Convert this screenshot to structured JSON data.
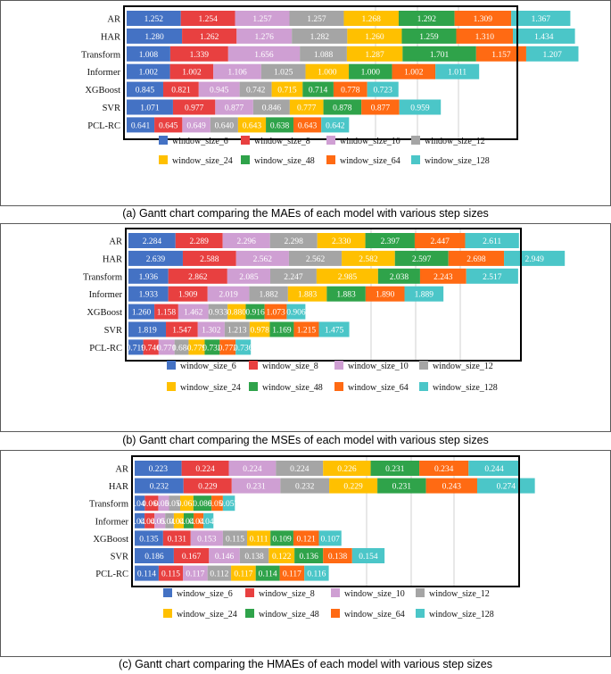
{
  "colors": [
    "#4472c4",
    "#e84040",
    "#cf9fd3",
    "#a5a5a5",
    "#ffc000",
    "#2fa34a",
    "#ff6a13",
    "#4bc6c8"
  ],
  "legend": [
    "window_size_6",
    "window_size_8",
    "window_size_10",
    "window_size_12",
    "window_size_24",
    "window_size_48",
    "window_size_64",
    "window_size_128"
  ],
  "captions": [
    "(a) Gantt chart comparing the MAEs of each model with various step sizes",
    "(b) Gantt chart comparing the MSEs of each model with various step sizes",
    "(c) Gantt chart comparing the HMAEs of each model with various step sizes"
  ],
  "chart_data": [
    {
      "type": "bar",
      "orientation": "horizontal-stacked",
      "title": "(a) Gantt chart comparing the MAEs of each model with various step sizes",
      "metric": "MAE",
      "categories": [
        "AR",
        "HAR",
        "Transform",
        "Informer",
        "XGBoost",
        "SVR",
        "PCL-RC"
      ],
      "series": [
        {
          "name": "window_size_6",
          "values": [
            "1.252",
            "1.280",
            "1.008",
            "1.002",
            "0.845",
            "1.071",
            "0.641"
          ]
        },
        {
          "name": "window_size_8",
          "values": [
            "1.254",
            "1.262",
            "1.339",
            "1.002",
            "0.821",
            "0.977",
            "0.645"
          ]
        },
        {
          "name": "window_size_10",
          "values": [
            "1.257",
            "1.276",
            "1.656",
            "1.106",
            "0.945",
            "0.877",
            "0.649"
          ]
        },
        {
          "name": "window_size_12",
          "values": [
            "1.257",
            "1.282",
            "1.088",
            "1.025",
            "0.742",
            "0.846",
            "0.640"
          ]
        },
        {
          "name": "window_size_24",
          "values": [
            "1.268",
            "1.260",
            "1.287",
            "1.000",
            "0.715",
            "0.777",
            "0.643"
          ]
        },
        {
          "name": "window_size_48",
          "values": [
            "1.292",
            "1.259",
            "1.701",
            "1.000",
            "0.714",
            "0.878",
            "0.638"
          ]
        },
        {
          "name": "window_size_64",
          "values": [
            "1.309",
            "1.310",
            "1.157",
            "1.002",
            "0.778",
            "0.877",
            "0.643"
          ]
        },
        {
          "name": "window_size_128",
          "values": [
            "1.367",
            "1.434",
            "1.207",
            "1.011",
            "0.723",
            "0.959",
            "0.642"
          ]
        }
      ]
    },
    {
      "type": "bar",
      "orientation": "horizontal-stacked",
      "title": "(b) Gantt chart comparing the MSEs of each model with various step sizes",
      "metric": "MSE",
      "categories": [
        "AR",
        "HAR",
        "Transform",
        "Informer",
        "XGBoost",
        "SVR",
        "PCL-RC"
      ],
      "series": [
        {
          "name": "window_size_6",
          "values": [
            "2.284",
            "2.639",
            "1.936",
            "1.933",
            "1.260",
            "1.819",
            "0.719"
          ]
        },
        {
          "name": "window_size_8",
          "values": [
            "2.289",
            "2.588",
            "2.862",
            "1.909",
            "1.158",
            "1.547",
            "0.746"
          ]
        },
        {
          "name": "window_size_10",
          "values": [
            "2.296",
            "2.562",
            "2.085",
            "2.019",
            "1.462",
            "1.302",
            "0.771"
          ]
        },
        {
          "name": "window_size_12",
          "values": [
            "2.298",
            "2.562",
            "2.247",
            "1.882",
            "0.933",
            "1.213",
            "0.684"
          ]
        },
        {
          "name": "window_size_24",
          "values": [
            "2.330",
            "2.582",
            "2.985",
            "1.883",
            "0.880",
            "0.978",
            "0.779"
          ]
        },
        {
          "name": "window_size_48",
          "values": [
            "2.397",
            "2.597",
            "2.038",
            "1.883",
            "0.916",
            "1.169",
            "0.732"
          ]
        },
        {
          "name": "window_size_64",
          "values": [
            "2.447",
            "2.698",
            "2.243",
            "1.890",
            "1.073",
            "1.215",
            "0.772"
          ]
        },
        {
          "name": "window_size_128",
          "values": [
            "2.611",
            "2.949",
            "2.517",
            "1.889",
            "0.906",
            "1.475",
            "0.736"
          ]
        }
      ]
    },
    {
      "type": "bar",
      "orientation": "horizontal-stacked",
      "title": "(c) Gantt chart comparing the HMAEs of each model with various step sizes",
      "metric": "HMAE",
      "categories": [
        "AR",
        "HAR",
        "Transform",
        "Informer",
        "XGBoost",
        "SVR",
        "PCL-RC"
      ],
      "series": [
        {
          "name": "window_size_6",
          "values": [
            "0.223",
            "0.232",
            "0.048",
            "0.047",
            "0.135",
            "0.186",
            "0.114"
          ]
        },
        {
          "name": "window_size_8",
          "values": [
            "0.224",
            "0.229",
            "0.064",
            "0.047",
            "0.131",
            "0.167",
            "0.115"
          ]
        },
        {
          "name": "window_size_10",
          "values": [
            "0.224",
            "0.231",
            "0.051",
            "0.051",
            "0.153",
            "0.146",
            "0.117"
          ]
        },
        {
          "name": "window_size_12",
          "values": [
            "0.224",
            "0.232",
            "0.053",
            "0.041",
            "0.115",
            "0.138",
            "0.112"
          ]
        },
        {
          "name": "window_size_24",
          "values": [
            "0.226",
            "0.229",
            "0.063",
            "0.047",
            "0.111",
            "0.122",
            "0.117"
          ]
        },
        {
          "name": "window_size_48",
          "values": [
            "0.231",
            "0.231",
            "0.086",
            "0.047",
            "0.109",
            "0.136",
            "0.114"
          ]
        },
        {
          "name": "window_size_64",
          "values": [
            "0.234",
            "0.243",
            "0.054",
            "0.047",
            "0.121",
            "0.138",
            "0.117"
          ]
        },
        {
          "name": "window_size_128",
          "values": [
            "0.244",
            "0.274",
            "0.057",
            "0.047",
            "0.107",
            "0.154",
            "0.116"
          ]
        }
      ]
    }
  ]
}
